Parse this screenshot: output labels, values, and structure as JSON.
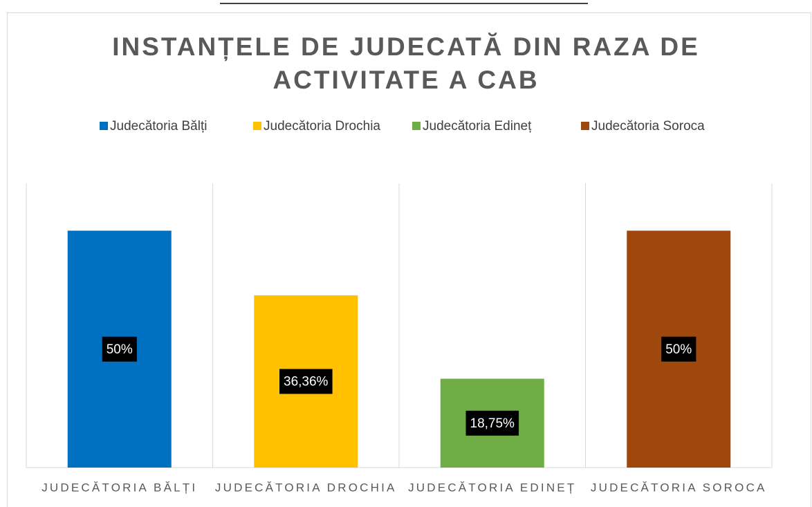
{
  "chart_data": {
    "type": "bar",
    "title": [
      "INSTANȚELE DE JUDECATĂ DIN RAZA DE",
      "ACTIVITATE A CAB"
    ],
    "legend": [
      "Judecătoria Bălți",
      "Judecătoria Drochia",
      "Judecătoria Edineț",
      "Judecătoria Soroca"
    ],
    "categories": [
      "JUDECĂTORIA BĂLȚI",
      "JUDECĂTORIA DROCHIA",
      "JUDECĂTORIA EDINEȚ",
      "JUDECĂTORIA SOROCA"
    ],
    "values": [
      50,
      36.36,
      18.75,
      50
    ],
    "value_labels": [
      "50%",
      "36,36%",
      "18,75%",
      "50%"
    ],
    "colors": [
      "#0070c0",
      "#ffc000",
      "#70ad47",
      "#9e480e"
    ],
    "ylim": [
      0,
      60
    ]
  }
}
